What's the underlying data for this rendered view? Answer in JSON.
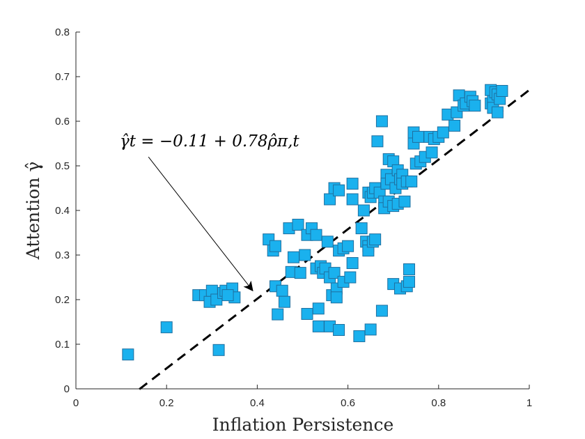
{
  "chart_data": {
    "type": "scatter",
    "xlabel": "Inflation Persistence",
    "ylabel": "Attention γ̂",
    "xlim": [
      0,
      1
    ],
    "ylim": [
      0,
      0.8
    ],
    "x_ticks": [
      "0",
      "0.2",
      "0.4",
      "0.6",
      "0.8",
      "1"
    ],
    "y_ticks": [
      "0",
      "0.1",
      "0.2",
      "0.3",
      "0.4",
      "0.5",
      "0.6",
      "0.7",
      "0.8"
    ],
    "annotation": "γ̂t = −0.11 + 0.78ρ̂π,t",
    "fit_line": {
      "intercept": -0.11,
      "slope": 0.78,
      "x_range": [
        0.14,
        1.0
      ]
    },
    "arrow": {
      "from": [
        0.16,
        0.52
      ],
      "to": [
        0.39,
        0.22
      ]
    },
    "colors": {
      "marker_fill": "#1ab1ee",
      "marker_edge": "#1f6f9f",
      "line": "#000000"
    },
    "series": [
      {
        "name": "observations",
        "points": [
          [
            0.115,
            0.077
          ],
          [
            0.2,
            0.138
          ],
          [
            0.315,
            0.087
          ],
          [
            0.27,
            0.21
          ],
          [
            0.285,
            0.21
          ],
          [
            0.295,
            0.195
          ],
          [
            0.3,
            0.22
          ],
          [
            0.31,
            0.2
          ],
          [
            0.325,
            0.215
          ],
          [
            0.33,
            0.22
          ],
          [
            0.345,
            0.225
          ],
          [
            0.35,
            0.205
          ],
          [
            0.335,
            0.21
          ],
          [
            0.425,
            0.335
          ],
          [
            0.435,
            0.31
          ],
          [
            0.44,
            0.32
          ],
          [
            0.44,
            0.23
          ],
          [
            0.445,
            0.167
          ],
          [
            0.455,
            0.22
          ],
          [
            0.46,
            0.195
          ],
          [
            0.47,
            0.36
          ],
          [
            0.475,
            0.262
          ],
          [
            0.48,
            0.295
          ],
          [
            0.49,
            0.368
          ],
          [
            0.495,
            0.26
          ],
          [
            0.505,
            0.3
          ],
          [
            0.51,
            0.345
          ],
          [
            0.51,
            0.168
          ],
          [
            0.52,
            0.36
          ],
          [
            0.53,
            0.345
          ],
          [
            0.53,
            0.27
          ],
          [
            0.535,
            0.18
          ],
          [
            0.535,
            0.14
          ],
          [
            0.54,
            0.275
          ],
          [
            0.545,
            0.26
          ],
          [
            0.55,
            0.27
          ],
          [
            0.555,
            0.33
          ],
          [
            0.56,
            0.14
          ],
          [
            0.56,
            0.425
          ],
          [
            0.56,
            0.25
          ],
          [
            0.565,
            0.21
          ],
          [
            0.57,
            0.45
          ],
          [
            0.57,
            0.26
          ],
          [
            0.575,
            0.225
          ],
          [
            0.575,
            0.205
          ],
          [
            0.58,
            0.445
          ],
          [
            0.58,
            0.31
          ],
          [
            0.58,
            0.132
          ],
          [
            0.59,
            0.315
          ],
          [
            0.59,
            0.24
          ],
          [
            0.6,
            0.32
          ],
          [
            0.605,
            0.25
          ],
          [
            0.61,
            0.46
          ],
          [
            0.61,
            0.425
          ],
          [
            0.61,
            0.282
          ],
          [
            0.625,
            0.118
          ],
          [
            0.63,
            0.36
          ],
          [
            0.635,
            0.4
          ],
          [
            0.64,
            0.33
          ],
          [
            0.645,
            0.44
          ],
          [
            0.645,
            0.32
          ],
          [
            0.645,
            0.31
          ],
          [
            0.65,
            0.43
          ],
          [
            0.65,
            0.133
          ],
          [
            0.655,
            0.44
          ],
          [
            0.655,
            0.33
          ],
          [
            0.66,
            0.45
          ],
          [
            0.66,
            0.335
          ],
          [
            0.665,
            0.555
          ],
          [
            0.67,
            0.44
          ],
          [
            0.675,
            0.6
          ],
          [
            0.675,
            0.175
          ],
          [
            0.68,
            0.42
          ],
          [
            0.68,
            0.405
          ],
          [
            0.685,
            0.48
          ],
          [
            0.685,
            0.46
          ],
          [
            0.69,
            0.515
          ],
          [
            0.69,
            0.42
          ],
          [
            0.695,
            0.47
          ],
          [
            0.7,
            0.51
          ],
          [
            0.7,
            0.41
          ],
          [
            0.7,
            0.235
          ],
          [
            0.705,
            0.45
          ],
          [
            0.71,
            0.49
          ],
          [
            0.71,
            0.415
          ],
          [
            0.715,
            0.47
          ],
          [
            0.715,
            0.225
          ],
          [
            0.72,
            0.48
          ],
          [
            0.72,
            0.46
          ],
          [
            0.725,
            0.42
          ],
          [
            0.73,
            0.465
          ],
          [
            0.73,
            0.23
          ],
          [
            0.735,
            0.24
          ],
          [
            0.735,
            0.268
          ],
          [
            0.74,
            0.465
          ],
          [
            0.745,
            0.55
          ],
          [
            0.745,
            0.575
          ],
          [
            0.75,
            0.505
          ],
          [
            0.755,
            0.565
          ],
          [
            0.76,
            0.51
          ],
          [
            0.77,
            0.52
          ],
          [
            0.78,
            0.565
          ],
          [
            0.785,
            0.53
          ],
          [
            0.79,
            0.56
          ],
          [
            0.8,
            0.565
          ],
          [
            0.81,
            0.575
          ],
          [
            0.82,
            0.615
          ],
          [
            0.835,
            0.59
          ],
          [
            0.84,
            0.62
          ],
          [
            0.845,
            0.658
          ],
          [
            0.855,
            0.635
          ],
          [
            0.86,
            0.64
          ],
          [
            0.87,
            0.655
          ],
          [
            0.875,
            0.645
          ],
          [
            0.88,
            0.635
          ],
          [
            0.915,
            0.67
          ],
          [
            0.915,
            0.64
          ],
          [
            0.92,
            0.645
          ],
          [
            0.92,
            0.63
          ],
          [
            0.925,
            0.665
          ],
          [
            0.93,
            0.62
          ],
          [
            0.93,
            0.66
          ],
          [
            0.935,
            0.65
          ],
          [
            0.94,
            0.668
          ]
        ]
      }
    ]
  }
}
